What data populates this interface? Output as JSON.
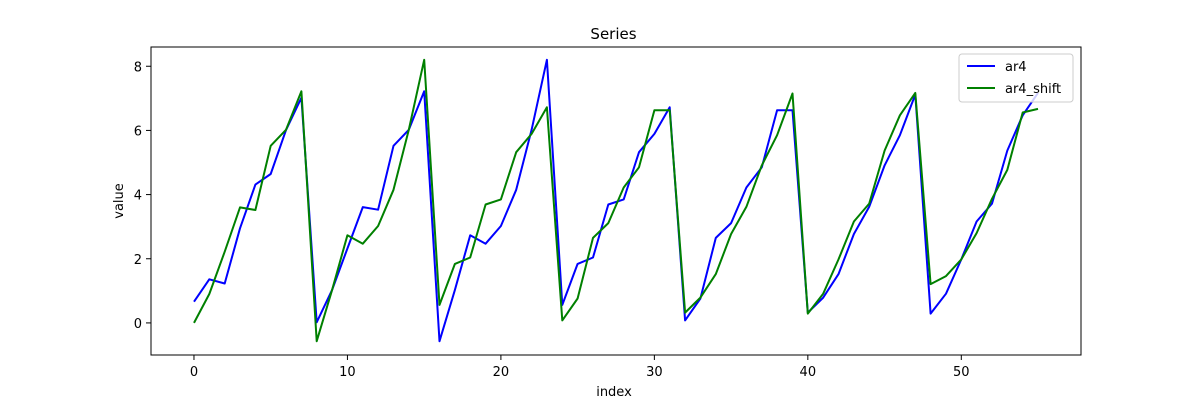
{
  "chart_data": {
    "type": "line",
    "title": "Series",
    "xlabel": "index",
    "ylabel": "value",
    "xlim": [
      -2.8,
      57.8
    ],
    "ylim": [
      -1.0,
      8.6
    ],
    "xticks": [
      0,
      10,
      20,
      30,
      40,
      50
    ],
    "yticks": [
      0,
      2,
      4,
      6,
      8
    ],
    "grid": false,
    "legend_position": "top-right",
    "series": [
      {
        "name": "ar4",
        "color": "#0000ff",
        "x": [
          0,
          1,
          2,
          3,
          4,
          5,
          6,
          7,
          8,
          9,
          10,
          11,
          12,
          13,
          14,
          15,
          16,
          17,
          18,
          19,
          20,
          21,
          22,
          23,
          24,
          25,
          26,
          27,
          28,
          29,
          30,
          31,
          32,
          33,
          34,
          35,
          36,
          37,
          38,
          39,
          40,
          41,
          42,
          43,
          44,
          45,
          46,
          47,
          48,
          49,
          50,
          51,
          52,
          53,
          54,
          55
        ],
        "y": [
          0.66,
          1.36,
          1.23,
          2.95,
          4.31,
          4.64,
          6.01,
          7.02,
          0.02,
          1.03,
          2.32,
          3.61,
          3.53,
          5.52,
          6.02,
          7.22,
          -0.57,
          1.03,
          2.73,
          2.47,
          3.02,
          4.15,
          6.02,
          8.2,
          0.56,
          1.84,
          2.04,
          3.69,
          3.85,
          5.32,
          5.89,
          6.72,
          0.08,
          0.76,
          2.65,
          3.11,
          4.22,
          4.85,
          6.63,
          6.63,
          0.32,
          0.79,
          1.52,
          2.77,
          3.62,
          4.91,
          5.85,
          7.12,
          0.29,
          0.91,
          1.98,
          3.16,
          3.72,
          5.37,
          6.47,
          7.17
        ]
      },
      {
        "name": "ar4_shift",
        "color": "#008000",
        "x": [
          0,
          1,
          2,
          3,
          4,
          5,
          6,
          7,
          8,
          9,
          10,
          11,
          12,
          13,
          14,
          15,
          16,
          17,
          18,
          19,
          20,
          21,
          22,
          23,
          24,
          25,
          26,
          27,
          28,
          29,
          30,
          31,
          32,
          33,
          34,
          35,
          36,
          37,
          38,
          39,
          40,
          41,
          42,
          43,
          44,
          45,
          46,
          47,
          48,
          49,
          50,
          51,
          52,
          53,
          54,
          55
        ],
        "y": [
          0.0,
          0.9,
          2.22,
          3.6,
          3.52,
          5.52,
          6.02,
          7.22,
          -0.57,
          1.03,
          2.73,
          2.47,
          3.02,
          4.15,
          6.02,
          8.2,
          0.56,
          1.84,
          2.04,
          3.69,
          3.85,
          5.32,
          5.89,
          6.72,
          0.08,
          0.76,
          2.65,
          3.11,
          4.22,
          4.85,
          6.63,
          6.63,
          0.32,
          0.79,
          1.52,
          2.77,
          3.62,
          4.91,
          5.85,
          7.15,
          0.29,
          0.91,
          1.98,
          3.16,
          3.72,
          5.37,
          6.47,
          7.17,
          1.21,
          1.46,
          1.98,
          2.8,
          3.87,
          4.77,
          6.56,
          6.67
        ]
      }
    ]
  }
}
